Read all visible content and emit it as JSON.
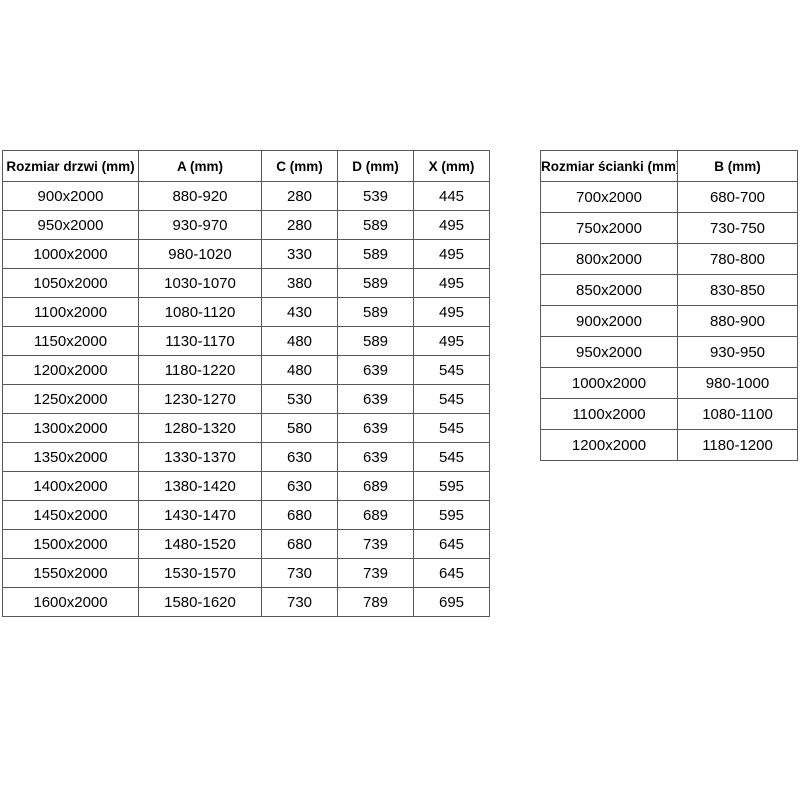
{
  "page": {
    "background_color": "#ffffff",
    "text_color": "#000000",
    "border_color": "#595959"
  },
  "doors_table": {
    "headers": [
      "Rozmiar drzwi (mm)",
      "A (mm)",
      "C (mm)",
      "D (mm)",
      "X (mm)"
    ],
    "rows": [
      [
        "900x2000",
        "880-920",
        "280",
        "539",
        "445"
      ],
      [
        "950x2000",
        "930-970",
        "280",
        "589",
        "495"
      ],
      [
        "1000x2000",
        "980-1020",
        "330",
        "589",
        "495"
      ],
      [
        "1050x2000",
        "1030-1070",
        "380",
        "589",
        "495"
      ],
      [
        "1100x2000",
        "1080-1120",
        "430",
        "589",
        "495"
      ],
      [
        "1150x2000",
        "1130-1170",
        "480",
        "589",
        "495"
      ],
      [
        "1200x2000",
        "1180-1220",
        "480",
        "639",
        "545"
      ],
      [
        "1250x2000",
        "1230-1270",
        "530",
        "639",
        "545"
      ],
      [
        "1300x2000",
        "1280-1320",
        "580",
        "639",
        "545"
      ],
      [
        "1350x2000",
        "1330-1370",
        "630",
        "639",
        "545"
      ],
      [
        "1400x2000",
        "1380-1420",
        "630",
        "689",
        "595"
      ],
      [
        "1450x2000",
        "1430-1470",
        "680",
        "689",
        "595"
      ],
      [
        "1500x2000",
        "1480-1520",
        "680",
        "739",
        "645"
      ],
      [
        "1550x2000",
        "1530-1570",
        "730",
        "739",
        "645"
      ],
      [
        "1600x2000",
        "1580-1620",
        "730",
        "789",
        "695"
      ]
    ]
  },
  "wall_table": {
    "headers": [
      "Rozmiar ścianki (mm)",
      "B (mm)"
    ],
    "rows": [
      [
        "700x2000",
        "680-700"
      ],
      [
        "750x2000",
        "730-750"
      ],
      [
        "800x2000",
        "780-800"
      ],
      [
        "850x2000",
        "830-850"
      ],
      [
        "900x2000",
        "880-900"
      ],
      [
        "950x2000",
        "930-950"
      ],
      [
        "1000x2000",
        "980-1000"
      ],
      [
        "1100x2000",
        "1080-1100"
      ],
      [
        "1200x2000",
        "1180-1200"
      ]
    ]
  }
}
